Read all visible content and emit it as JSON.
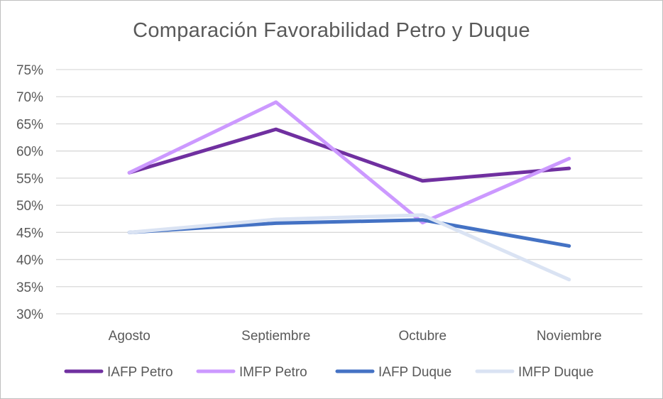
{
  "chart_data": {
    "type": "line",
    "title": "Comparación Favorabilidad Petro y Duque",
    "categories": [
      "Agosto",
      "Septiembre",
      "Octubre",
      "Noviembre"
    ],
    "ylim": [
      0.3,
      0.75
    ],
    "ytick_step": 0.05,
    "y_format": "percent",
    "grid": true,
    "legend_position": "bottom",
    "series": [
      {
        "name": "IAFP Petro",
        "color": "#7030A0",
        "values": [
          0.56,
          0.64,
          0.545,
          0.568
        ]
      },
      {
        "name": "IMFP Petro",
        "color": "#CC99FF",
        "values": [
          0.56,
          0.69,
          0.468,
          0.586
        ]
      },
      {
        "name": "IAFP Duque",
        "color": "#4472C4",
        "values": [
          0.45,
          0.467,
          0.473,
          0.425
        ]
      },
      {
        "name": "IMFP Duque",
        "color": "#DAE3F3",
        "values": [
          0.45,
          0.474,
          0.482,
          0.363
        ]
      }
    ]
  }
}
